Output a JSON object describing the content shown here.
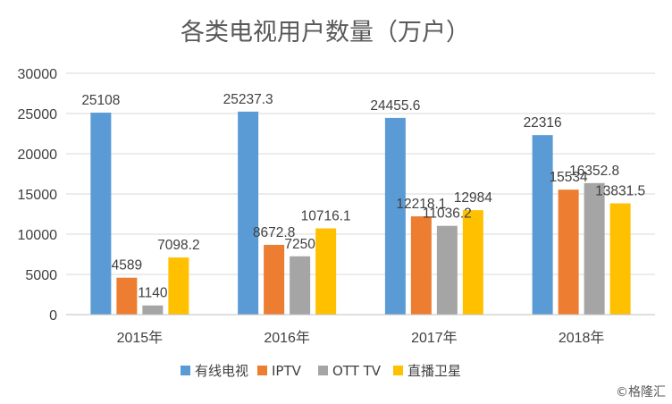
{
  "chart_data": {
    "type": "bar",
    "title": "各类电视用户数量（万户）",
    "categories": [
      "2015年",
      "2016年",
      "2017年",
      "2018年"
    ],
    "series": [
      {
        "name": "有线电视",
        "color": "#5B9BD5",
        "values": [
          25108,
          25237.3,
          24455.6,
          22316
        ],
        "labels": [
          "25108",
          "25237.3",
          "24455.6",
          "22316"
        ]
      },
      {
        "name": "IPTV",
        "color": "#ED7D31",
        "values": [
          4589,
          8672.8,
          12218.1,
          15534
        ],
        "labels": [
          "4589",
          "8672.8",
          "12218.1",
          "15534"
        ]
      },
      {
        "name": "OTT TV",
        "color": "#A5A5A5",
        "values": [
          1140,
          7250,
          11036.2,
          16352.8
        ],
        "labels": [
          "1140",
          "7250",
          "11036.2",
          "16352.8"
        ]
      },
      {
        "name": "直播卫星",
        "color": "#FFC000",
        "values": [
          7098.2,
          10716.1,
          12984,
          13831.5
        ],
        "labels": [
          "7098.2",
          "10716.1",
          "12984",
          "13831.5"
        ]
      }
    ],
    "ylim": [
      0,
      30000
    ],
    "yticks": [
      "0",
      "5000",
      "10000",
      "15000",
      "20000",
      "25000",
      "30000"
    ],
    "grid": true,
    "legend_position": "bottom"
  },
  "watermark": "©格隆汇"
}
